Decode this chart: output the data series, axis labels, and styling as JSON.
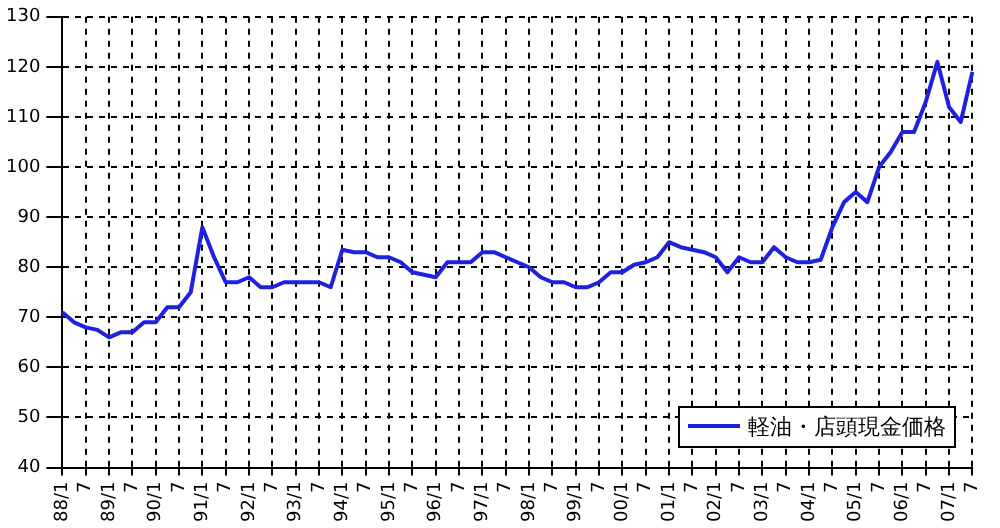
{
  "chart_data": {
    "type": "line",
    "categories": [
      "88/1",
      null,
      "7",
      null,
      "89/1",
      null,
      "7",
      null,
      "90/1",
      null,
      "7",
      null,
      "91/1",
      null,
      "7",
      null,
      "92/1",
      null,
      "7",
      null,
      "93/1",
      null,
      "7",
      null,
      "94/1",
      null,
      "7",
      null,
      "95/1",
      null,
      "7",
      null,
      "96/1",
      null,
      "7",
      null,
      "97/1",
      null,
      "7",
      null,
      "98/1",
      null,
      "7",
      null,
      "99/1",
      null,
      "7",
      null,
      "00/1",
      null,
      "7",
      null,
      "01/1",
      null,
      "7",
      null,
      "02/1",
      null,
      "7",
      null,
      "03/1",
      null,
      "7",
      null,
      "04/1",
      null,
      "7",
      null,
      "05/1",
      null,
      "7",
      null,
      "06/1",
      null,
      "7",
      null,
      "07/1",
      null,
      "7"
    ],
    "series": [
      {
        "name": "軽油・店頭現金価格",
        "color": "#2020e0",
        "values": [
          71,
          69,
          68,
          67.5,
          66,
          67,
          67,
          69,
          69,
          72,
          72,
          75,
          88,
          82,
          77,
          77,
          78,
          76,
          76,
          77,
          77,
          77,
          77,
          76,
          83.5,
          83,
          83,
          82,
          82,
          81,
          79,
          78.5,
          78,
          81,
          81,
          81,
          83,
          83,
          82,
          81,
          80,
          78,
          77,
          77,
          76,
          76,
          77,
          79,
          79,
          80.5,
          81,
          82,
          85,
          84,
          83.5,
          83,
          82,
          79,
          82,
          81,
          81,
          84,
          82,
          81,
          81,
          81.5,
          88,
          93,
          95,
          93,
          100,
          103,
          107,
          107,
          113,
          121,
          112,
          109,
          119
        ]
      }
    ],
    "ylim": [
      40,
      130
    ],
    "yticks": [
      40,
      50,
      60,
      70,
      80,
      90,
      100,
      110,
      120,
      130
    ],
    "grid": true,
    "legend": "bottom right",
    "marker": "none",
    "line_style": "solid"
  }
}
